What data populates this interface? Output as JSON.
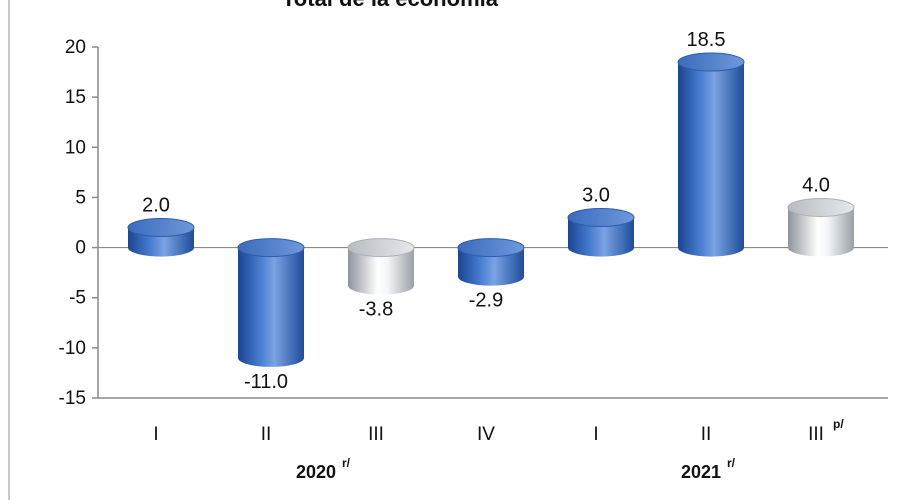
{
  "chart_data": {
    "type": "bar",
    "title": "Total de la economía",
    "categories": [
      "I",
      "II",
      "III",
      "IV",
      "I",
      "II",
      "III"
    ],
    "category_superscripts": [
      "",
      "",
      "",
      "",
      "",
      "",
      "p/"
    ],
    "groups": [
      {
        "label": "2020",
        "superscript": "r/",
        "count": 4
      },
      {
        "label": "2021",
        "superscript": "r/",
        "count": 3
      }
    ],
    "values": [
      2.0,
      -11.0,
      -3.8,
      -2.9,
      3.0,
      18.5,
      4.0
    ],
    "value_labels": [
      "2.0",
      "-11.0",
      "-3.8",
      "-2.9",
      "3.0",
      "18.5",
      "4.0"
    ],
    "bar_styles": [
      "blue",
      "blue",
      "white",
      "blue",
      "blue",
      "blue",
      "white"
    ],
    "ylim": [
      -15,
      20
    ],
    "yticks": [
      20,
      15,
      10,
      5,
      0,
      -5,
      -10,
      -15
    ],
    "xlabel": "",
    "ylabel": "",
    "grid": false,
    "colors": {
      "blue_dark": "#1f4fa0",
      "blue_mid": "#3f74c9",
      "blue_light": "#8fb2e8",
      "white_dark": "#8a8f96",
      "white_light": "#ffffff",
      "axis": "#8a8a8a"
    }
  }
}
